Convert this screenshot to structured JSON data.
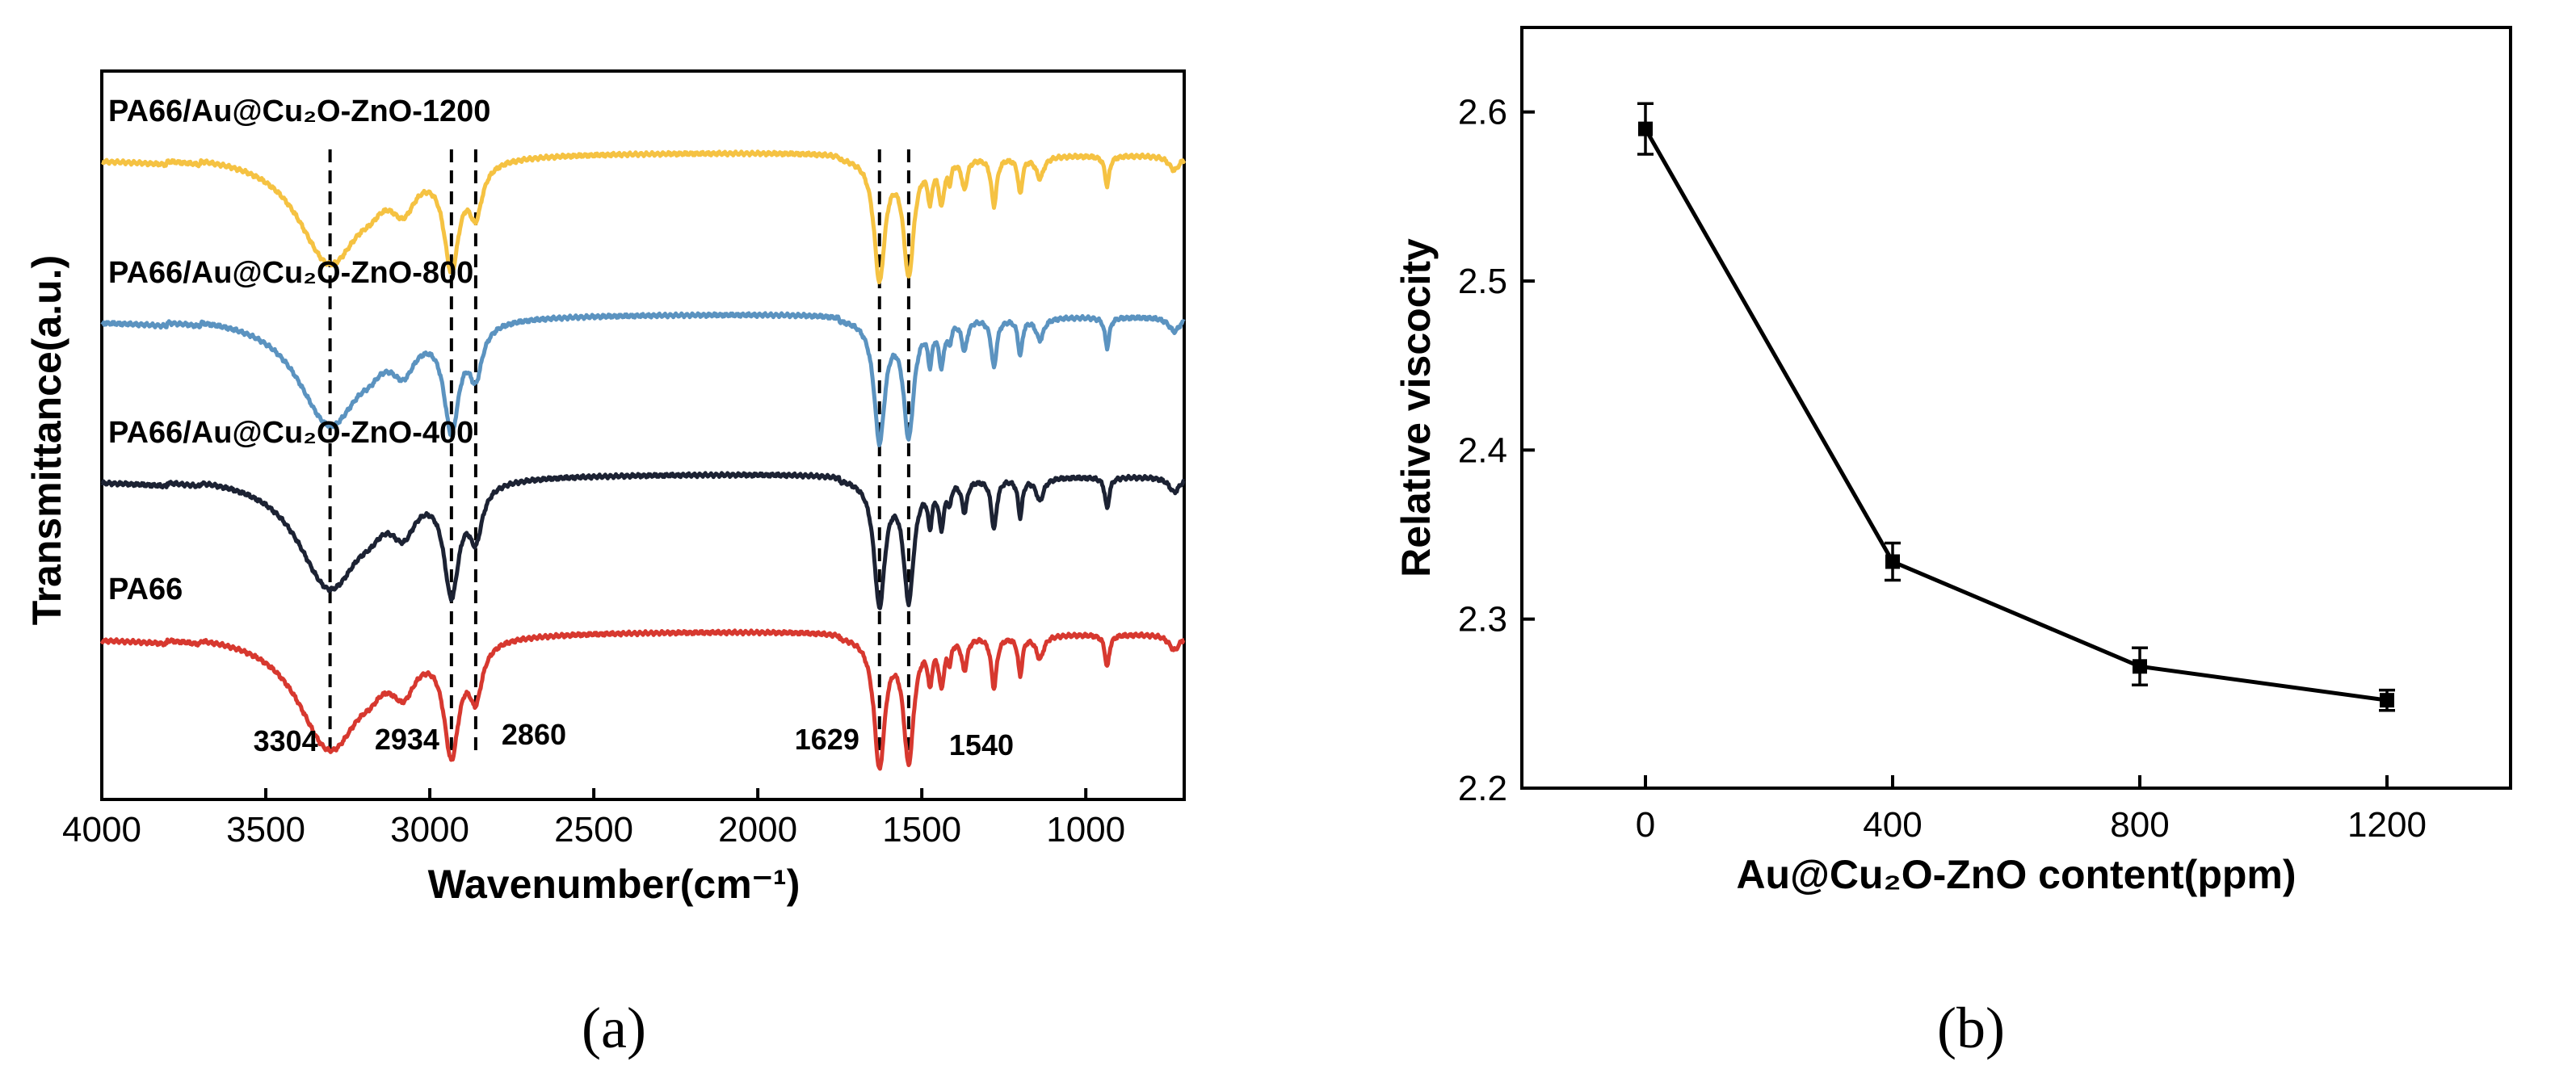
{
  "chart_data": [
    {
      "id": "a",
      "panel_label": "(a)",
      "type": "line",
      "title": "",
      "xlabel": "Wavenumber(cm⁻¹)",
      "ylabel": "Transmittance(a.u.)",
      "xlim": [
        4000,
        700
      ],
      "xticks": [
        4000,
        3500,
        3000,
        2500,
        2000,
        1500,
        1000
      ],
      "series": [
        {
          "name": "PA66/Au@Cu₂O-ZnO-1200",
          "color": "#F5C242"
        },
        {
          "name": "PA66/Au@Cu₂O-ZnO-800",
          "color": "#5B93C0"
        },
        {
          "name": "PA66/Au@Cu₂O-ZnO-400",
          "color": "#1C2233"
        },
        {
          "name": "PA66",
          "color": "#D7382F"
        }
      ],
      "peaks": [
        3304,
        2934,
        2860,
        1629,
        1540
      ],
      "peak_labels": [
        "3304",
        "2934",
        "2860",
        "1629",
        "1540"
      ]
    },
    {
      "id": "b",
      "panel_label": "(b)",
      "type": "line",
      "title": "",
      "xlabel": "Au@Cu₂O-ZnO content(ppm)",
      "ylabel": "Relative viscocity",
      "x": [
        0,
        400,
        800,
        1200
      ],
      "y": [
        2.59,
        2.334,
        2.272,
        2.252
      ],
      "yerr": [
        0.015,
        0.011,
        0.011,
        0.006
      ],
      "xlim": [
        -200,
        1400
      ],
      "ylim": [
        2.2,
        2.65
      ],
      "xticks": [
        0,
        400,
        800,
        1200
      ],
      "xtick_labels": [
        "0",
        "400",
        "800",
        "1200"
      ],
      "yticks": [
        2.2,
        2.3,
        2.4,
        2.5,
        2.6
      ],
      "ytick_labels": [
        "2.2",
        "2.3",
        "2.4",
        "2.5",
        "2.6"
      ],
      "color": "#000000"
    }
  ]
}
